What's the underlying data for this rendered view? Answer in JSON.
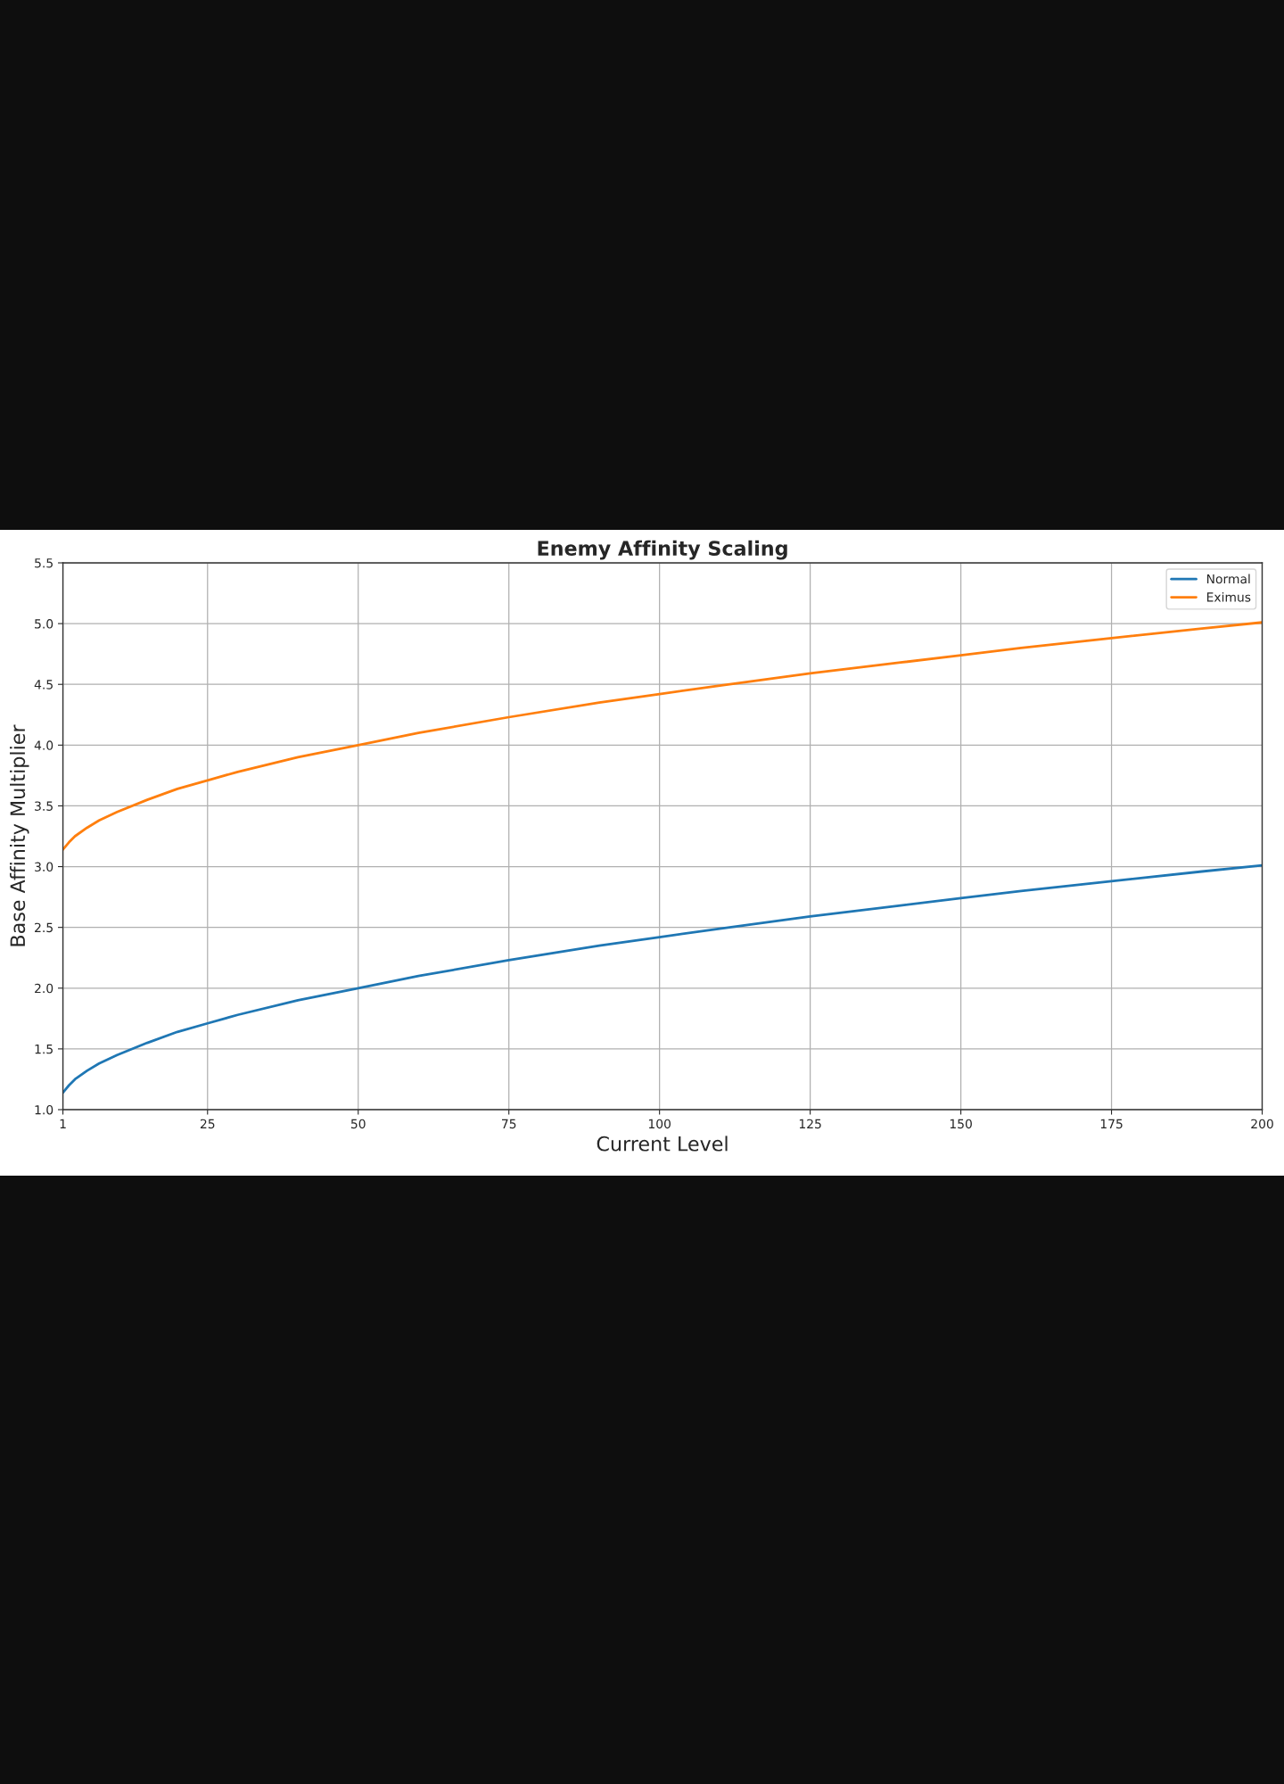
{
  "chart_data": {
    "type": "line",
    "title": "Enemy Affinity Scaling",
    "xlabel": "Current Level",
    "ylabel": "Base Affinity Multiplier",
    "x": [
      1,
      2,
      3,
      5,
      7,
      10,
      15,
      20,
      25,
      30,
      40,
      50,
      60,
      75,
      90,
      100,
      110,
      125,
      140,
      150,
      160,
      175,
      190,
      200
    ],
    "series": [
      {
        "name": "Normal",
        "color": "#1f77b4",
        "values": [
          1.14,
          1.2,
          1.25,
          1.32,
          1.38,
          1.45,
          1.55,
          1.64,
          1.71,
          1.78,
          1.9,
          2.0,
          2.1,
          2.23,
          2.35,
          2.42,
          2.49,
          2.59,
          2.68,
          2.74,
          2.8,
          2.88,
          2.96,
          3.01
        ]
      },
      {
        "name": "Eximus",
        "color": "#ff7f0e",
        "values": [
          3.14,
          3.2,
          3.25,
          3.32,
          3.38,
          3.45,
          3.55,
          3.64,
          3.71,
          3.78,
          3.9,
          4.0,
          4.1,
          4.23,
          4.35,
          4.42,
          4.49,
          4.59,
          4.68,
          4.74,
          4.8,
          4.88,
          4.96,
          5.01
        ]
      }
    ],
    "xlim": [
      1,
      200
    ],
    "xticks": [
      1,
      25,
      50,
      75,
      100,
      125,
      150,
      175,
      200
    ],
    "ylim": [
      1.0,
      5.5
    ],
    "yticks": [
      {
        "value": 1.0,
        "label": "1.0"
      },
      {
        "value": 1.5,
        "label": "1.5"
      },
      {
        "value": 2.0,
        "label": "2.0"
      },
      {
        "value": 2.5,
        "label": "2.5"
      },
      {
        "value": 3.0,
        "label": "3.0"
      },
      {
        "value": 3.5,
        "label": "3.5"
      },
      {
        "value": 4.0,
        "label": "4.0"
      },
      {
        "value": 4.5,
        "label": "4.5"
      },
      {
        "value": 5.0,
        "label": "5.0"
      },
      {
        "value": 5.5,
        "label": "5.5"
      }
    ],
    "grid": true,
    "legend": "top right",
    "marker": "none",
    "line_style": "solid"
  }
}
